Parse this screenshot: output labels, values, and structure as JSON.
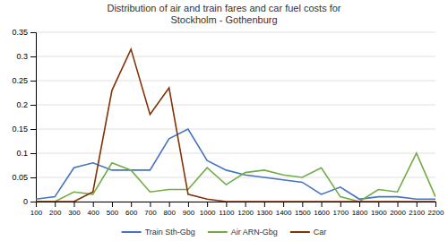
{
  "chart_data": {
    "type": "line",
    "title": "Distribution of air and train fares and car fuel costs for\nStockholm - Gothenburg",
    "x": [
      100,
      200,
      300,
      400,
      500,
      600,
      700,
      800,
      900,
      1000,
      1100,
      1200,
      1300,
      1400,
      1500,
      1600,
      1700,
      1800,
      1900,
      2000,
      2100,
      2200
    ],
    "series": [
      {
        "name": "Train Sth-Gbg",
        "color": "#4472c4",
        "values": [
          0.005,
          0.01,
          0.07,
          0.08,
          0.065,
          0.065,
          0.065,
          0.13,
          0.15,
          0.085,
          0.065,
          0.055,
          0.05,
          0.045,
          0.04,
          0.015,
          0.03,
          0.005,
          0.01,
          0.01,
          0.005,
          0.005
        ]
      },
      {
        "name": "Air ARN-Gbg",
        "color": "#70ad47",
        "values": [
          0.0,
          0.0,
          0.02,
          0.015,
          0.08,
          0.065,
          0.02,
          0.025,
          0.025,
          0.07,
          0.035,
          0.06,
          0.065,
          0.055,
          0.05,
          0.07,
          0.01,
          0.0,
          0.025,
          0.02,
          0.1,
          0.01
        ]
      },
      {
        "name": "Car",
        "color": "#833205",
        "values": [
          0.0,
          0.0,
          0.0,
          0.02,
          0.23,
          0.315,
          0.18,
          0.235,
          0.015,
          0.005,
          0.0,
          0.0,
          0.0,
          0.0,
          0.0,
          0.0,
          0.0,
          0.0,
          0.0,
          0.0,
          0.0,
          0.0
        ]
      }
    ],
    "xlim": [
      100,
      2200
    ],
    "xticks": [
      100,
      200,
      300,
      400,
      500,
      600,
      700,
      800,
      900,
      1000,
      1100,
      1200,
      1300,
      1400,
      1500,
      1600,
      1700,
      1800,
      1900,
      2000,
      2100,
      2200
    ],
    "ylim": [
      0,
      0.35
    ],
    "yticks": [
      0,
      0.05,
      0.1,
      0.15,
      0.2,
      0.25,
      0.3,
      0.35
    ],
    "grid": true,
    "legend": "bottom"
  }
}
